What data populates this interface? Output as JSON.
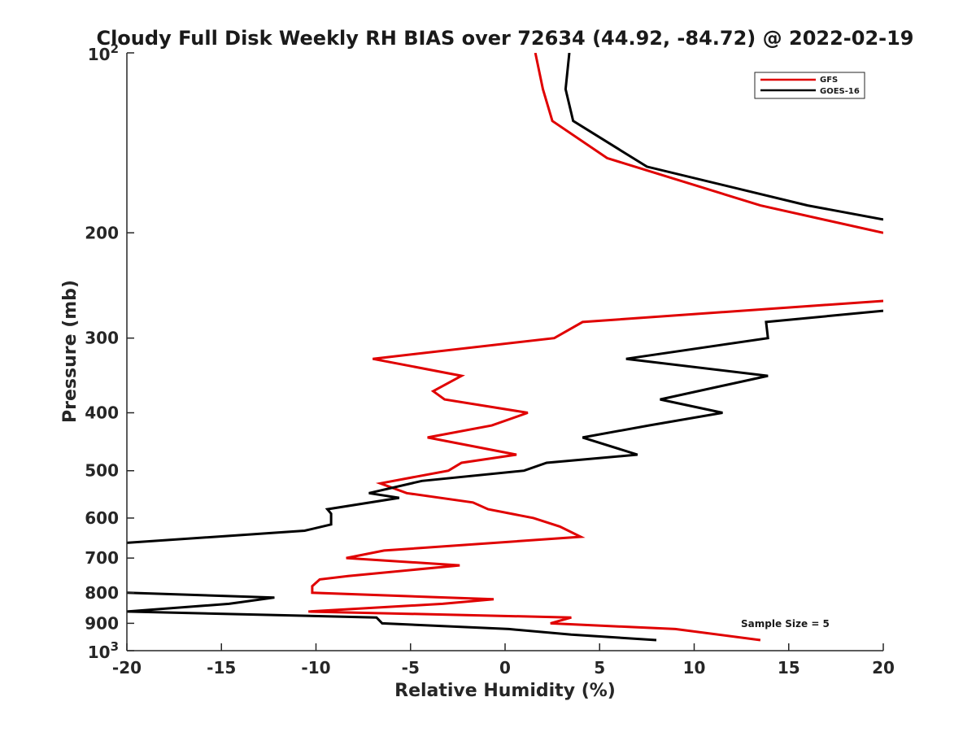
{
  "chart_data": {
    "type": "line",
    "title": "Cloudy Full Disk Weekly RH BIAS over 72634 (44.92, -84.72) @ 2022-02-19",
    "xlabel": "Relative Humidity (%)",
    "ylabel": "Pressure (mb)",
    "xlim": [
      -20,
      20
    ],
    "ylim": [
      100,
      1000
    ],
    "y_scale": "log",
    "y_reversed": true,
    "x_ticks": [
      "-20",
      "-15",
      "-10",
      "-5",
      "0",
      "5",
      "10",
      "15",
      "20"
    ],
    "y_ticks": [
      {
        "value": 100,
        "base": "10",
        "exp": "2"
      },
      {
        "value": 200,
        "label": "200"
      },
      {
        "value": 300,
        "label": "300"
      },
      {
        "value": 400,
        "label": "400"
      },
      {
        "value": 500,
        "label": "500"
      },
      {
        "value": 600,
        "label": "600"
      },
      {
        "value": 700,
        "label": "700"
      },
      {
        "value": 800,
        "label": "800"
      },
      {
        "value": 900,
        "label": "900"
      },
      {
        "value": 1000,
        "base": "10",
        "exp": "3"
      }
    ],
    "grid": false,
    "legend_position": "top-right",
    "annotation": "Sample Size = 5",
    "series": [
      {
        "name": "GFS",
        "color": "#e00000",
        "segments": [
          [
            [
              1.6,
              100
            ],
            [
              2.0,
              115
            ],
            [
              2.5,
              130
            ],
            [
              5.4,
              150
            ],
            [
              13.5,
              180
            ],
            [
              20,
              200
            ]
          ],
          [
            [
              20,
              260
            ],
            [
              16.2,
              265
            ],
            [
              4.1,
              282
            ],
            [
              2.6,
              300
            ],
            [
              -7,
              325
            ],
            [
              -2.3,
              347
            ],
            [
              -3.8,
              368
            ],
            [
              -3.2,
              380
            ],
            [
              1.2,
              400
            ],
            [
              -0.7,
              420
            ],
            [
              -4.1,
              440
            ],
            [
              0.6,
              470
            ],
            [
              -2.3,
              485
            ],
            [
              -3,
              500
            ],
            [
              -6.6,
              525
            ],
            [
              -5.2,
              545
            ],
            [
              -1.7,
              565
            ],
            [
              -0.9,
              580
            ],
            [
              1.5,
              600
            ],
            [
              2.9,
              620
            ],
            [
              4,
              645
            ],
            [
              -6.4,
              680
            ],
            [
              -8.4,
              700
            ],
            [
              -2.4,
              720
            ],
            [
              -8.3,
              750
            ],
            [
              -9.8,
              760
            ],
            [
              -10.2,
              780
            ],
            [
              -10.2,
              800
            ],
            [
              -0.6,
              820
            ],
            [
              -3.3,
              835
            ],
            [
              -10.4,
              860
            ],
            [
              3.5,
              880
            ],
            [
              2.4,
              900
            ],
            [
              9,
              920
            ],
            [
              13.5,
              960
            ]
          ]
        ]
      },
      {
        "name": "GOES-16",
        "color": "#000000",
        "segments": [
          [
            [
              3.4,
              100
            ],
            [
              3.2,
              115
            ],
            [
              3.6,
              130
            ],
            [
              7.5,
              155
            ],
            [
              16,
              180
            ],
            [
              20,
              190
            ]
          ],
          [
            [
              20,
              270
            ],
            [
              13.8,
              282
            ],
            [
              13.9,
              300
            ],
            [
              6.4,
              325
            ],
            [
              13.9,
              347
            ],
            [
              8.2,
              380
            ],
            [
              11.5,
              400
            ],
            [
              7.6,
              420
            ],
            [
              4.1,
              440
            ],
            [
              7,
              470
            ],
            [
              2.2,
              485
            ],
            [
              1,
              500
            ],
            [
              -4.4,
              520
            ],
            [
              -7.2,
              545
            ],
            [
              -5.6,
              555
            ],
            [
              -9.4,
              580
            ],
            [
              -9.2,
              590
            ],
            [
              -9.2,
              615
            ],
            [
              -10.6,
              630
            ],
            [
              -20,
              660
            ]
          ],
          [
            [
              -20,
              800
            ],
            [
              -12.2,
              815
            ],
            [
              -14.6,
              835
            ],
            [
              -20,
              860
            ],
            [
              -6.8,
              880
            ],
            [
              -6.5,
              900
            ],
            [
              0.2,
              920
            ],
            [
              3.5,
              940
            ],
            [
              8,
              960
            ]
          ]
        ]
      }
    ]
  }
}
